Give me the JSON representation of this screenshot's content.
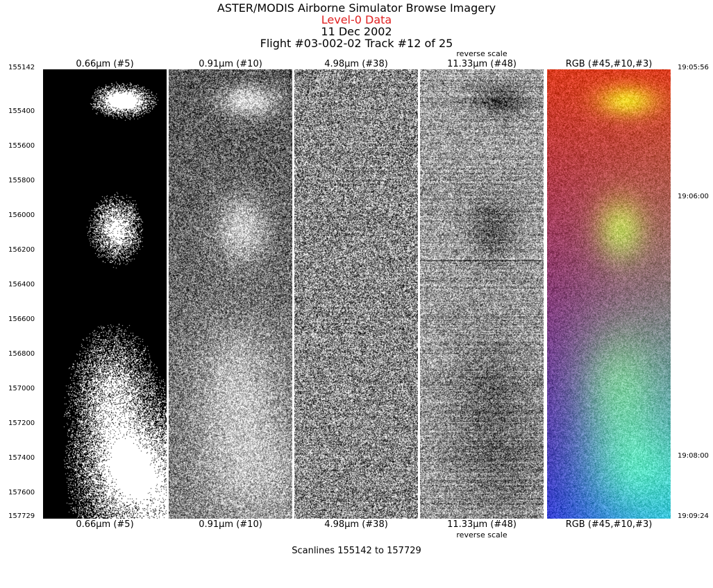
{
  "header": {
    "title": "ASTER/MODIS Airborne Simulator Browse Imagery",
    "level": "Level-0 Data",
    "date": "11 Dec 2002",
    "flight": "Flight #03-002-02 Track #12 of 25",
    "level_color": "#e02020"
  },
  "panels": [
    {
      "label": "0.66μm (#5)",
      "style": "binary"
    },
    {
      "label": "0.91μm (#10)",
      "style": "gray"
    },
    {
      "label": "4.98μm (#38)",
      "style": "noise"
    },
    {
      "label": "11.33μm (#48)",
      "style": "thermal",
      "note": "reverse scale"
    },
    {
      "label": "RGB (#45,#10,#3)",
      "style": "rgb"
    }
  ],
  "scanline_ticks": [
    "155142",
    "155400",
    "155600",
    "155800",
    "156000",
    "156200",
    "156400",
    "156600",
    "156800",
    "157000",
    "157200",
    "157400",
    "157600",
    "157729"
  ],
  "time_ticks": [
    "19:05:56",
    "19:06:00",
    "19:08:00",
    "19:09:24"
  ],
  "footer": "Scanlines 155142 to 157729"
}
